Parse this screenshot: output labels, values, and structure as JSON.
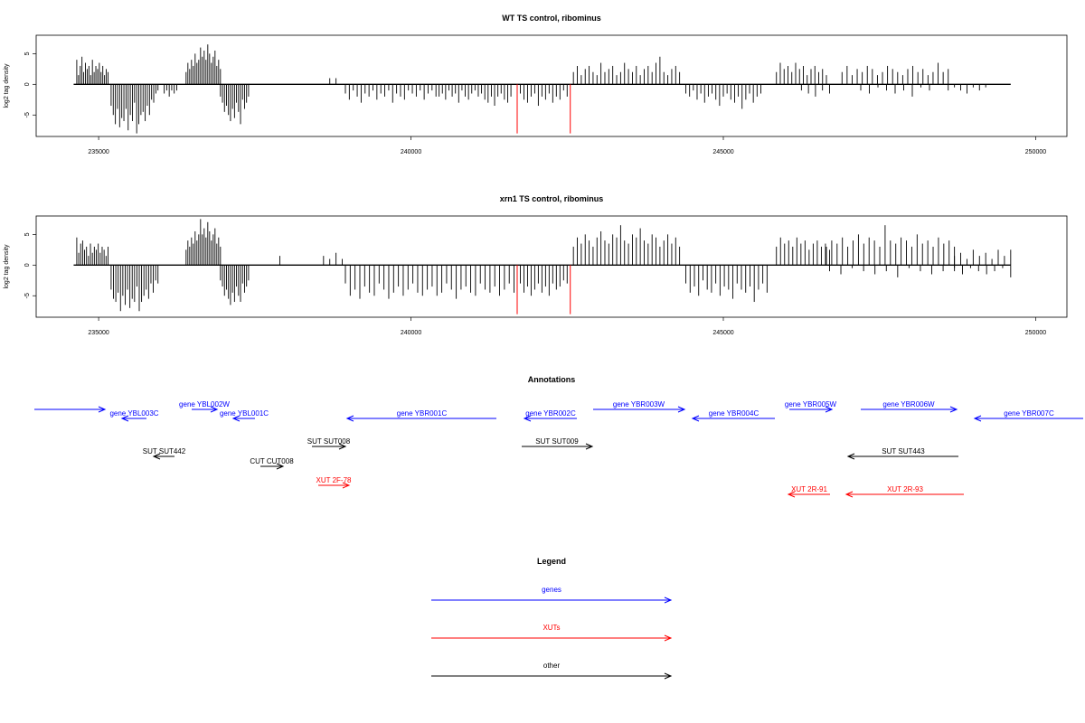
{
  "colors": {
    "gene": "#0000ff",
    "xut": "#ff0000",
    "other": "#000000",
    "marker": "#ff0000",
    "bar": "#000000"
  },
  "chart_data": [
    {
      "type": "bar",
      "title": "WT TS control, ribominus",
      "xlabel": "",
      "ylabel": "log2 tag density",
      "xlim": [
        234000,
        250500
      ],
      "ylim": [
        -8.5,
        8
      ],
      "xticks": [
        235000,
        240000,
        245000,
        250000
      ],
      "xtick_labels": [
        "235000",
        "240000",
        "245000",
        "250000"
      ],
      "yticks": [
        -5,
        0,
        5
      ],
      "ytick_labels": [
        "-5",
        "0",
        "5"
      ],
      "baseline_x": [
        234600,
        249600
      ],
      "markers_x": [
        241700,
        242550
      ],
      "marker_low": -8,
      "series": [
        {
          "x_start": 234650,
          "x_end": 235150,
          "values": [
            4,
            1.5,
            3,
            4.5,
            2,
            3.5,
            2.5,
            3,
            1.5,
            4,
            2,
            3,
            2.5,
            3.5,
            2,
            3,
            1.5,
            2.5,
            2
          ]
        },
        {
          "x_start": 235200,
          "x_end": 235950,
          "values": [
            -3.5,
            -5,
            -6.5,
            -4,
            -7,
            -5.5,
            -6,
            -4,
            -7.5,
            -5,
            -6,
            -3,
            -8,
            -6.5,
            -5,
            -4.5,
            -6,
            -3.5,
            -5,
            -2.5,
            -3,
            -1.5,
            -1
          ]
        },
        {
          "x_start": 236050,
          "x_end": 236250,
          "values": [
            -1.5,
            -1,
            -2,
            -1,
            -1.5,
            -1
          ]
        },
        {
          "x_start": 236400,
          "x_end": 236950,
          "values": [
            2,
            3.5,
            2.5,
            4,
            3,
            5,
            3.5,
            4,
            6,
            4.5,
            5.5,
            4,
            6.5,
            5,
            3.5,
            4.5,
            5.5,
            3,
            4,
            2.5
          ]
        },
        {
          "x_start": 236950,
          "x_end": 237400,
          "values": [
            -2,
            -3,
            -4.5,
            -3.5,
            -5,
            -6,
            -4,
            -5.5,
            -3,
            -4.5,
            -6.5,
            -2.5,
            -4,
            -3,
            -2
          ]
        },
        {
          "x_start": 238700,
          "x_end": 238800,
          "values": [
            1,
            1
          ]
        },
        {
          "x_start": 238950,
          "x_end": 240400,
          "values": [
            -1.5,
            -2.5,
            -1,
            -2,
            -3,
            -1.5,
            -2,
            -1,
            -2.5,
            -1.5,
            -2,
            -1,
            -3,
            -1.5,
            -2,
            -2.5,
            -1,
            -1.5,
            -2,
            -1,
            -2.5,
            -1.5,
            -1,
            -2
          ]
        },
        {
          "x_start": 240450,
          "x_end": 241600,
          "values": [
            -2,
            -1.5,
            -2.5,
            -1,
            -2,
            -1.5,
            -3,
            -1,
            -2,
            -2.5,
            -1.5,
            -1,
            -2,
            -1.5,
            -2.5,
            -3,
            -2,
            -3.5,
            -2,
            -1.5,
            -2.5,
            -3,
            -2
          ]
        },
        {
          "x_start": 241750,
          "x_end": 242500,
          "values": [
            -1.5,
            -2.5,
            -3,
            -2,
            -1.5,
            -3.5,
            -2,
            -2.5,
            -1.5,
            -3,
            -2,
            -2.5,
            -1,
            -2
          ]
        },
        {
          "x_start": 242600,
          "x_end": 244300,
          "values": [
            2,
            3,
            1.5,
            2.5,
            3,
            2,
            1.5,
            3.5,
            2,
            2.5,
            3,
            1.5,
            2,
            3.5,
            2.5,
            2,
            3,
            1.5,
            2.5,
            3,
            2,
            3.5,
            4.5,
            2,
            1.5,
            2.5,
            3,
            2
          ]
        },
        {
          "x_start": 244400,
          "x_end": 245600,
          "values": [
            -1.5,
            -2,
            -1,
            -2.5,
            -1.5,
            -3,
            -2,
            -1.5,
            -2.5,
            -3.5,
            -2,
            -1.5,
            -2.5,
            -3,
            -2,
            -4,
            -2.5,
            -1.5,
            -3,
            -2,
            -1.5
          ]
        },
        {
          "x_start": 245850,
          "x_end": 246650,
          "values": [
            2,
            3.5,
            2.5,
            3,
            2,
            3.5,
            2.5,
            3,
            1.5,
            2.5,
            3,
            2,
            2.5,
            1.5
          ]
        },
        {
          "x_start": 246250,
          "x_end": 246700,
          "values": [
            -1,
            -1.5,
            -2,
            -1,
            -1.5
          ]
        },
        {
          "x_start": 246900,
          "x_end": 248600,
          "values": [
            2,
            3,
            1.5,
            2.5,
            2,
            3,
            2.5,
            1.5,
            2,
            3,
            2.5,
            2,
            1.5,
            2.5,
            3,
            2,
            2.5,
            1.5,
            2,
            3.5,
            2,
            2.5
          ]
        },
        {
          "x_start": 247200,
          "x_end": 248300,
          "values": [
            -1,
            -1.5,
            -0.5,
            -1,
            -1.5,
            -1,
            -2,
            -0.5,
            -1
          ]
        },
        {
          "x_start": 248600,
          "x_end": 249200,
          "values": [
            -1,
            -0.5,
            -1,
            -1.5,
            -0.5,
            -1,
            -0.5
          ]
        }
      ]
    },
    {
      "type": "bar",
      "title": "xrn1 TS control, ribominus",
      "xlabel": "",
      "ylabel": "log2 tag density",
      "xlim": [
        234000,
        250500
      ],
      "ylim": [
        -8.5,
        8
      ],
      "xticks": [
        235000,
        240000,
        245000,
        250000
      ],
      "xtick_labels": [
        "235000",
        "240000",
        "245000",
        "250000"
      ],
      "yticks": [
        -5,
        0,
        5
      ],
      "ytick_labels": [
        "-5",
        "0",
        "5"
      ],
      "baseline_x": [
        234600,
        249600
      ],
      "markers_x": [
        241700,
        242550
      ],
      "marker_low": -8,
      "series": [
        {
          "x_start": 234650,
          "x_end": 235150,
          "values": [
            4.5,
            2,
            3.5,
            4,
            2.5,
            3,
            1.5,
            3.5,
            2,
            3,
            2.5,
            3.5,
            2,
            3,
            2.5,
            1.5,
            3
          ]
        },
        {
          "x_start": 235200,
          "x_end": 235950,
          "values": [
            -4,
            -5.5,
            -6,
            -4.5,
            -7.5,
            -5,
            -6.5,
            -4,
            -7,
            -5.5,
            -6,
            -3.5,
            -7.5,
            -6,
            -5,
            -4,
            -5.5,
            -3,
            -4.5,
            -2.5,
            -3
          ]
        },
        {
          "x_start": 236400,
          "x_end": 236950,
          "values": [
            2.5,
            4,
            3,
            4.5,
            3.5,
            5.5,
            4,
            5,
            7.5,
            5,
            6,
            4.5,
            7,
            5.5,
            4,
            5,
            6,
            3.5,
            4.5,
            3
          ]
        },
        {
          "x_start": 236950,
          "x_end": 237400,
          "values": [
            -2.5,
            -3.5,
            -5,
            -4,
            -5.5,
            -6.5,
            -4.5,
            -6,
            -3.5,
            -5,
            -6,
            -3,
            -4.5,
            -3.5,
            -2.5
          ]
        },
        {
          "x_start": 237900,
          "x_end": 237950,
          "values": [
            1.5
          ]
        },
        {
          "x_start": 238600,
          "x_end": 238900,
          "values": [
            1.5,
            1,
            2,
            1
          ]
        },
        {
          "x_start": 238950,
          "x_end": 241650,
          "values": [
            -3,
            -5,
            -4,
            -5.5,
            -3.5,
            -4.5,
            -5,
            -3,
            -4,
            -5.5,
            -4.5,
            -3.5,
            -5,
            -4,
            -3,
            -4.5,
            -5,
            -4,
            -3.5,
            -5,
            -4.5,
            -3,
            -4,
            -5.5,
            -4,
            -3.5,
            -4.5,
            -5,
            -3,
            -4,
            -4.5,
            -3.5,
            -5,
            -4,
            -3,
            -4.5
          ]
        },
        {
          "x_start": 241750,
          "x_end": 242500,
          "values": [
            -3,
            -4.5,
            -3.5,
            -5,
            -4,
            -3,
            -4.5,
            -3.5,
            -5,
            -3,
            -4,
            -3.5,
            -2.5,
            -3
          ]
        },
        {
          "x_start": 242600,
          "x_end": 244300,
          "values": [
            3,
            4.5,
            3.5,
            5,
            4,
            3,
            4.5,
            5.5,
            4,
            3.5,
            5,
            4.5,
            6.5,
            4,
            3.5,
            5,
            4.5,
            6,
            4,
            3.5,
            5,
            4.5,
            3,
            4,
            5,
            3.5,
            4.5,
            3
          ]
        },
        {
          "x_start": 244400,
          "x_end": 245700,
          "values": [
            -3,
            -4.5,
            -3.5,
            -5,
            -2.5,
            -4,
            -4.5,
            -3,
            -5,
            -3.5,
            -4,
            -5.5,
            -3,
            -4,
            -4.5,
            -3.5,
            -6,
            -4,
            -3,
            -4.5
          ]
        },
        {
          "x_start": 245850,
          "x_end": 246700,
          "values": [
            3,
            4.5,
            3.5,
            4,
            3,
            4.5,
            3.5,
            4,
            2.5,
            3.5,
            4,
            3,
            3.5,
            2.5
          ]
        },
        {
          "x_start": 246650,
          "x_end": 248700,
          "values": [
            3,
            4,
            3.5,
            4.5,
            3,
            4,
            5,
            3.5,
            4.5,
            4,
            3,
            6.5,
            4,
            3.5,
            4.5,
            4,
            3,
            5,
            3.5,
            4,
            3,
            4.5,
            3.5,
            4,
            3
          ]
        },
        {
          "x_start": 246700,
          "x_end": 248700,
          "values": [
            -1,
            -1.5,
            -0.5,
            -1,
            -1.5,
            -1,
            -2,
            -0.5,
            -1,
            -1.5,
            -1,
            -0.5
          ]
        },
        {
          "x_start": 248700,
          "x_end": 249600,
          "values": [
            1.5,
            2,
            1,
            2.5,
            1.5,
            2,
            1,
            2.5,
            1.5,
            2.5
          ]
        },
        {
          "x_start": 248700,
          "x_end": 249600,
          "values": [
            -1,
            -1.5,
            -0.5,
            -1,
            -1.5,
            -1,
            -0.5,
            -2
          ]
        }
      ]
    }
  ],
  "annotations": {
    "title": "Annotations",
    "items": [
      {
        "label": "",
        "kind": "gene",
        "dir": ">",
        "x1": 38,
        "x2": 116,
        "row": 0
      },
      {
        "label": "gene YBL002W",
        "kind": "gene",
        "dir": ">",
        "x1": 212,
        "x2": 240,
        "row": 0
      },
      {
        "label": "gene YBL003C",
        "kind": "gene",
        "dir": "<",
        "x1": 135,
        "x2": 162,
        "row": 1
      },
      {
        "label": "gene YBL001C",
        "kind": "gene",
        "dir": "<",
        "x1": 258,
        "x2": 282,
        "row": 1
      },
      {
        "label": "gene YBR001C",
        "kind": "gene",
        "dir": "<",
        "x1": 384,
        "x2": 549,
        "row": 1
      },
      {
        "label": "gene YBR002C",
        "kind": "gene",
        "dir": "<",
        "x1": 580,
        "x2": 638,
        "row": 1
      },
      {
        "label": "gene YBR003W",
        "kind": "gene",
        "dir": ">",
        "x1": 656,
        "x2": 757,
        "row": 0
      },
      {
        "label": "gene YBR004C",
        "kind": "gene",
        "dir": "<",
        "x1": 766,
        "x2": 857,
        "row": 1
      },
      {
        "label": "gene YBR005W",
        "kind": "gene",
        "dir": ">",
        "x1": 873,
        "x2": 920,
        "row": 0
      },
      {
        "label": "gene YBR006W",
        "kind": "gene",
        "dir": ">",
        "x1": 952,
        "x2": 1058,
        "row": 0
      },
      {
        "label": "gene YBR007C",
        "kind": "gene",
        "dir": "<",
        "x1": 1078,
        "x2": 1198,
        "row": 1
      },
      {
        "label": "SUT SUT442",
        "kind": "other",
        "dir": "<",
        "x1": 170,
        "x2": 193,
        "row": 2
      },
      {
        "label": "SUT SUT008",
        "kind": "other",
        "dir": ">",
        "x1": 345,
        "x2": 382,
        "row": 3
      },
      {
        "label": "SUT SUT009",
        "kind": "other",
        "dir": ">",
        "x1": 577,
        "x2": 655,
        "row": 3
      },
      {
        "label": "SUT SUT443",
        "kind": "other",
        "dir": "<",
        "x1": 938,
        "x2": 1060,
        "row": 2
      },
      {
        "label": "CUT CUT008",
        "kind": "other",
        "dir": ">",
        "x1": 288,
        "x2": 313,
        "row": 4
      },
      {
        "label": "XUT 2F-78",
        "kind": "xut",
        "dir": ">",
        "x1": 352,
        "x2": 386,
        "row": 5
      },
      {
        "label": "XUT 2R-91",
        "kind": "xut",
        "dir": "<",
        "x1": 872,
        "x2": 918,
        "row": 6
      },
      {
        "label": "XUT 2R-93",
        "kind": "xut",
        "dir": "<",
        "x1": 936,
        "x2": 1066,
        "row": 6
      }
    ]
  },
  "legend": {
    "title": "Legend",
    "items": [
      {
        "label": "genes",
        "kind": "gene"
      },
      {
        "label": "XUTs",
        "kind": "xut"
      },
      {
        "label": "other",
        "kind": "other"
      }
    ]
  }
}
